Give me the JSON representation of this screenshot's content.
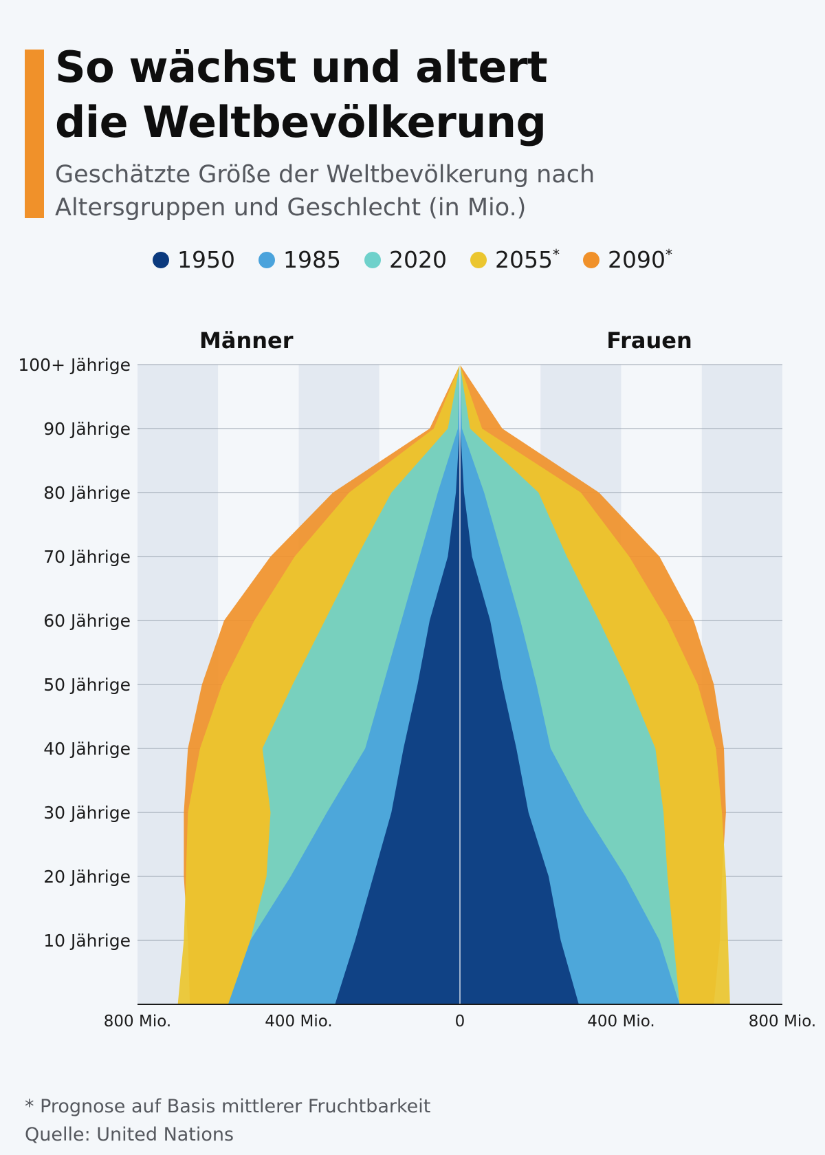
{
  "header": {
    "title_line1": "So wächst und altert",
    "title_line2": "die Weltbevölkerung",
    "subtitle_line1": "Geschätzte Größe der Weltbevölkerung nach",
    "subtitle_line2": "Altersgruppen und Geschlecht (in Mio.)"
  },
  "legend": [
    {
      "label": "1950",
      "color": "#0b3a7e",
      "mark": ""
    },
    {
      "label": "1985",
      "color": "#4aa3dc",
      "mark": ""
    },
    {
      "label": "2020",
      "color": "#6ed1cb",
      "mark": ""
    },
    {
      "label": "2055",
      "color": "#ebc62f",
      "mark": "*"
    },
    {
      "label": "2090",
      "color": "#f0912a",
      "mark": "*"
    }
  ],
  "chart_data": {
    "type": "area",
    "subtype": "population-pyramid",
    "side_labels": {
      "left": "Männer",
      "right": "Frauen"
    },
    "age_groups": [
      0,
      10,
      20,
      30,
      40,
      50,
      60,
      70,
      80,
      90,
      100
    ],
    "y_tick_labels": [
      "10 Jährige",
      "20 Jährige",
      "30 Jährige",
      "40 Jährige",
      "50 Jährige",
      "60 Jährige",
      "70 Jährige",
      "80 Jährige",
      "90 Jährige",
      "100+ Jährige"
    ],
    "x_tick_labels": [
      "800 Mio.",
      "400 Mio.",
      "0",
      "400 Mio.",
      "800 Mio."
    ],
    "x_tick_values": [
      -800,
      -400,
      0,
      400,
      800
    ],
    "xlim": [
      -800,
      800
    ],
    "ylim": [
      0,
      100
    ],
    "series": [
      {
        "name": "2090*",
        "color": "#f0912a",
        "men": [
          670,
          675,
          685,
          685,
          675,
          640,
          585,
          470,
          315,
          75,
          0
        ],
        "women": [
          630,
          645,
          650,
          660,
          655,
          630,
          580,
          495,
          345,
          105,
          0
        ]
      },
      {
        "name": "2055*",
        "color": "#ebc62f",
        "men": [
          700,
          685,
          680,
          675,
          645,
          590,
          510,
          410,
          275,
          65,
          0
        ],
        "women": [
          670,
          665,
          660,
          650,
          635,
          590,
          515,
          420,
          300,
          55,
          0
        ]
      },
      {
        "name": "2020",
        "color": "#6ed1cb",
        "men": [
          575,
          520,
          480,
          470,
          490,
          415,
          335,
          255,
          170,
          30,
          0
        ],
        "women": [
          545,
          530,
          515,
          505,
          485,
          420,
          345,
          265,
          195,
          25,
          0
        ]
      },
      {
        "name": "1985",
        "color": "#4aa3dc",
        "men": [
          575,
          520,
          420,
          330,
          235,
          190,
          145,
          100,
          55,
          5,
          0
        ],
        "women": [
          545,
          495,
          410,
          310,
          225,
          190,
          150,
          105,
          60,
          5,
          0
        ]
      },
      {
        "name": "1950",
        "color": "#0b3a7e",
        "men": [
          310,
          260,
          215,
          170,
          140,
          105,
          75,
          30,
          10,
          1,
          0
        ],
        "women": [
          295,
          250,
          220,
          170,
          140,
          105,
          75,
          30,
          10,
          1,
          0
        ]
      }
    ]
  },
  "footer": {
    "note": "* Prognose auf Basis mittlerer Fruchtbarkeit",
    "source": "Quelle: United Nations"
  }
}
